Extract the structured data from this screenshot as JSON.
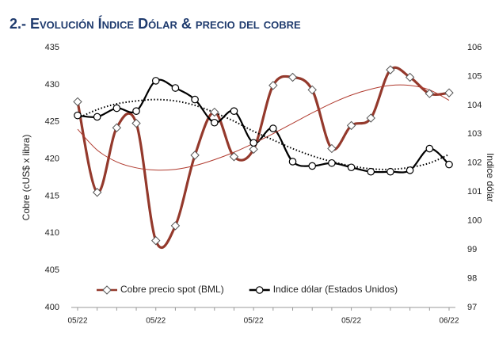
{
  "chart_data": {
    "type": "line",
    "title": "2.- Evolución Índice Dólar & precio del cobre",
    "y_label": "Cobre (cUS$ x libra)",
    "y2_label": "Indice dólar",
    "categories": [
      "05/22",
      null,
      null,
      null,
      "05/22",
      null,
      null,
      null,
      null,
      "05/22",
      null,
      null,
      null,
      null,
      "05/22",
      null,
      null,
      null,
      null,
      "06/22"
    ],
    "ylim": [
      400,
      435
    ],
    "yticks": [
      400,
      405,
      410,
      415,
      420,
      425,
      430,
      435
    ],
    "y2lim": [
      97,
      106
    ],
    "y2ticks": [
      97,
      98,
      99,
      100,
      101,
      102,
      103,
      104,
      105,
      106
    ],
    "series": [
      {
        "name": "Cobre precio spot (BML)",
        "color": "#94392c",
        "marker": "diamond",
        "values": [
          427.7,
          415.5,
          424.2,
          424.8,
          409.0,
          411.0,
          420.5,
          426.3,
          420.3,
          421.3,
          429.9,
          431.0,
          429.3,
          421.4,
          424.5,
          425.5,
          432.0,
          431.0,
          428.8,
          428.9
        ]
      },
      {
        "name": "Indice dólar (Estados Unidos)",
        "color": "#000000",
        "marker": "circle",
        "axis": "y2",
        "values": [
          103.65,
          103.6,
          103.9,
          103.8,
          104.85,
          104.6,
          104.2,
          103.4,
          103.8,
          102.7,
          103.2,
          102.05,
          101.9,
          102.0,
          101.85,
          101.7,
          101.7,
          101.75,
          102.5,
          101.95
        ]
      },
      {
        "color": "#b03a2e",
        "style": "trend",
        "values": [
          424.0,
          421.2,
          419.6,
          418.8,
          418.5,
          418.6,
          419.1,
          419.9,
          420.9,
          422.1,
          423.4,
          424.8,
          426.2,
          427.5,
          428.6,
          429.4,
          429.9,
          429.9,
          429.3,
          427.9
        ]
      },
      {
        "color": "#000000",
        "style": "dotted",
        "axis": "y2",
        "values": [
          103.55,
          103.85,
          104.05,
          104.15,
          104.2,
          104.15,
          104.0,
          103.75,
          103.45,
          103.1,
          102.8,
          102.5,
          102.25,
          102.05,
          101.9,
          101.8,
          101.78,
          101.85,
          102.0,
          102.3
        ]
      }
    ]
  }
}
